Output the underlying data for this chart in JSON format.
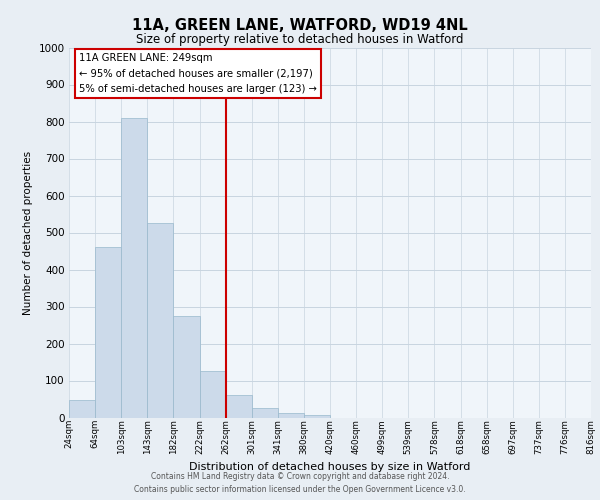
{
  "title": "11A, GREEN LANE, WATFORD, WD19 4NL",
  "subtitle": "Size of property relative to detached houses in Watford",
  "xlabel": "Distribution of detached houses by size in Watford",
  "ylabel": "Number of detached properties",
  "bar_values": [
    47,
    460,
    810,
    525,
    275,
    125,
    60,
    25,
    13,
    8,
    0,
    0,
    0,
    0,
    0,
    0,
    0,
    0,
    0,
    0
  ],
  "bar_labels": [
    "24sqm",
    "64sqm",
    "103sqm",
    "143sqm",
    "182sqm",
    "222sqm",
    "262sqm",
    "301sqm",
    "341sqm",
    "380sqm",
    "420sqm",
    "460sqm",
    "499sqm",
    "539sqm",
    "578sqm",
    "618sqm",
    "658sqm",
    "697sqm",
    "737sqm",
    "776sqm",
    "816sqm"
  ],
  "bar_color": "#ccdaea",
  "bar_edge_color": "#98b8cc",
  "red_line_x": 6,
  "annotation_title": "11A GREEN LANE: 249sqm",
  "annotation_line1": "← 95% of detached houses are smaller (2,197)",
  "annotation_line2": "5% of semi-detached houses are larger (123) →",
  "annotation_border_color": "#cc0000",
  "ylim": [
    0,
    1000
  ],
  "yticks": [
    0,
    100,
    200,
    300,
    400,
    500,
    600,
    700,
    800,
    900,
    1000
  ],
  "footer_line1": "Contains HM Land Registry data © Crown copyright and database right 2024.",
  "footer_line2": "Contains public sector information licensed under the Open Government Licence v3.0.",
  "background_color": "#e8eef4",
  "plot_background_color": "#f0f5fa",
  "grid_color": "#c8d4e0"
}
